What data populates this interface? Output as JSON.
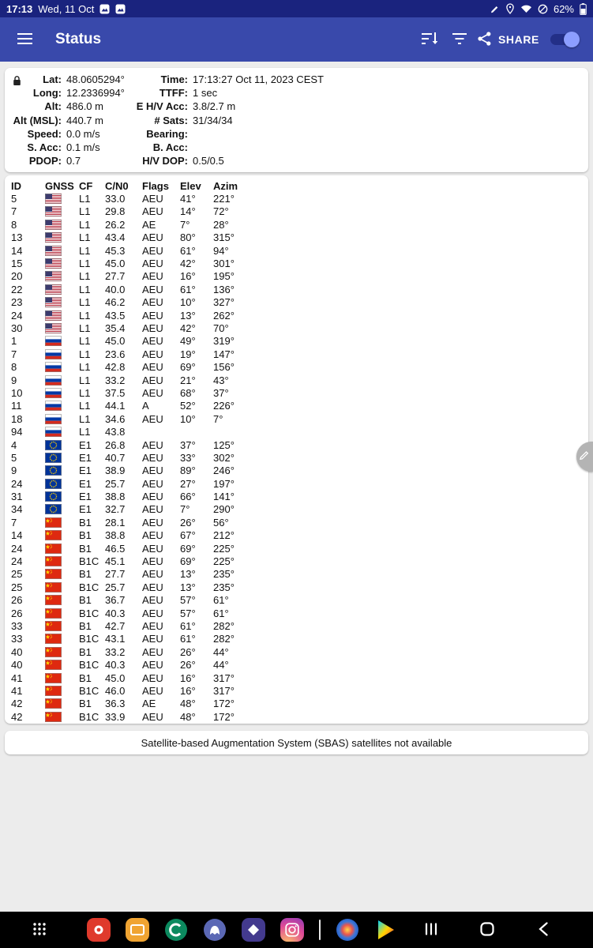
{
  "colors": {
    "status_bar": "#1A237E",
    "app_bar": "#3949AB",
    "background": "#ececec",
    "toggle_thumb": "#8C9EFF",
    "nav_bar": "#000000"
  },
  "status_bar": {
    "time": "17:13",
    "date": "Wed, 11 Oct",
    "battery": "62%",
    "left_icons": [
      "screenshot-icon",
      "screenshot-icon"
    ],
    "right_icons": [
      "edit-icon",
      "location-icon",
      "wifi-icon",
      "mute-icon",
      "battery-icon"
    ]
  },
  "app_bar": {
    "title": "Status",
    "share_label": "SHARE",
    "icons": [
      "menu-icon",
      "sort-icon",
      "filter-icon",
      "share-icon"
    ],
    "toggle_on": true
  },
  "info": {
    "rows_left": [
      {
        "label": "Lat:",
        "value": "48.0605294°"
      },
      {
        "label": "Long:",
        "value": "12.2336994°"
      },
      {
        "label": "Alt:",
        "value": "486.0 m"
      },
      {
        "label": "Alt (MSL):",
        "value": "440.7 m"
      },
      {
        "label": "Speed:",
        "value": "0.0 m/s"
      },
      {
        "label": "S. Acc:",
        "value": "0.1 m/s"
      },
      {
        "label": "PDOP:",
        "value": "0.7"
      }
    ],
    "rows_right": [
      {
        "label": "Time:",
        "value": "17:13:27 Oct 11, 2023 CEST"
      },
      {
        "label": "TTFF:",
        "value": "1 sec"
      },
      {
        "label": "E H/V Acc:",
        "value": "3.8/2.7 m"
      },
      {
        "label": "# Sats:",
        "value": "31/34/34"
      },
      {
        "label": "Bearing:",
        "value": ""
      },
      {
        "label": "B. Acc:",
        "value": ""
      },
      {
        "label": "H/V DOP:",
        "value": "0.5/0.5"
      }
    ]
  },
  "table": {
    "headers": [
      "ID",
      "GNSS",
      "CF",
      "C/N0",
      "Flags",
      "Elev",
      "Azim"
    ],
    "rows": [
      [
        "5",
        "us",
        "L1",
        "33.0",
        "AEU",
        "41°",
        "221°"
      ],
      [
        "7",
        "us",
        "L1",
        "29.8",
        "AEU",
        "14°",
        "72°"
      ],
      [
        "8",
        "us",
        "L1",
        "26.2",
        "AE",
        "7°",
        "28°"
      ],
      [
        "13",
        "us",
        "L1",
        "43.4",
        "AEU",
        "80°",
        "315°"
      ],
      [
        "14",
        "us",
        "L1",
        "45.3",
        "AEU",
        "61°",
        "94°"
      ],
      [
        "15",
        "us",
        "L1",
        "45.0",
        "AEU",
        "42°",
        "301°"
      ],
      [
        "20",
        "us",
        "L1",
        "27.7",
        "AEU",
        "16°",
        "195°"
      ],
      [
        "22",
        "us",
        "L1",
        "40.0",
        "AEU",
        "61°",
        "136°"
      ],
      [
        "23",
        "us",
        "L1",
        "46.2",
        "AEU",
        "10°",
        "327°"
      ],
      [
        "24",
        "us",
        "L1",
        "43.5",
        "AEU",
        "13°",
        "262°"
      ],
      [
        "30",
        "us",
        "L1",
        "35.4",
        "AEU",
        "42°",
        "70°"
      ],
      [
        "1",
        "ru",
        "L1",
        "45.0",
        "AEU",
        "49°",
        "319°"
      ],
      [
        "7",
        "ru",
        "L1",
        "23.6",
        "AEU",
        "19°",
        "147°"
      ],
      [
        "8",
        "ru",
        "L1",
        "42.8",
        "AEU",
        "69°",
        "156°"
      ],
      [
        "9",
        "ru",
        "L1",
        "33.2",
        "AEU",
        "21°",
        "43°"
      ],
      [
        "10",
        "ru",
        "L1",
        "37.5",
        "AEU",
        "68°",
        "37°"
      ],
      [
        "11",
        "ru",
        "L1",
        "44.1",
        "A",
        "52°",
        "226°"
      ],
      [
        "18",
        "ru",
        "L1",
        "34.6",
        "AEU",
        "10°",
        "7°"
      ],
      [
        "94",
        "ru",
        "L1",
        "43.8",
        "",
        "",
        ""
      ],
      [
        "4",
        "eu",
        "E1",
        "26.8",
        "AEU",
        "37°",
        "125°"
      ],
      [
        "5",
        "eu",
        "E1",
        "40.7",
        "AEU",
        "33°",
        "302°"
      ],
      [
        "9",
        "eu",
        "E1",
        "38.9",
        "AEU",
        "89°",
        "246°"
      ],
      [
        "24",
        "eu",
        "E1",
        "25.7",
        "AEU",
        "27°",
        "197°"
      ],
      [
        "31",
        "eu",
        "E1",
        "38.8",
        "AEU",
        "66°",
        "141°"
      ],
      [
        "34",
        "eu",
        "E1",
        "32.7",
        "AEU",
        "7°",
        "290°"
      ],
      [
        "7",
        "cn",
        "B1",
        "28.1",
        "AEU",
        "26°",
        "56°"
      ],
      [
        "14",
        "cn",
        "B1",
        "38.8",
        "AEU",
        "67°",
        "212°"
      ],
      [
        "24",
        "cn",
        "B1",
        "46.5",
        "AEU",
        "69°",
        "225°"
      ],
      [
        "24",
        "cn",
        "B1C",
        "45.1",
        "AEU",
        "69°",
        "225°"
      ],
      [
        "25",
        "cn",
        "B1",
        "27.7",
        "AEU",
        "13°",
        "235°"
      ],
      [
        "25",
        "cn",
        "B1C",
        "25.7",
        "AEU",
        "13°",
        "235°"
      ],
      [
        "26",
        "cn",
        "B1",
        "36.7",
        "AEU",
        "57°",
        "61°"
      ],
      [
        "26",
        "cn",
        "B1C",
        "40.3",
        "AEU",
        "57°",
        "61°"
      ],
      [
        "33",
        "cn",
        "B1",
        "42.7",
        "AEU",
        "61°",
        "282°"
      ],
      [
        "33",
        "cn",
        "B1C",
        "43.1",
        "AEU",
        "61°",
        "282°"
      ],
      [
        "40",
        "cn",
        "B1",
        "33.2",
        "AEU",
        "26°",
        "44°"
      ],
      [
        "40",
        "cn",
        "B1C",
        "40.3",
        "AEU",
        "26°",
        "44°"
      ],
      [
        "41",
        "cn",
        "B1",
        "45.0",
        "AEU",
        "16°",
        "317°"
      ],
      [
        "41",
        "cn",
        "B1C",
        "46.0",
        "AEU",
        "16°",
        "317°"
      ],
      [
        "42",
        "cn",
        "B1",
        "36.3",
        "AE",
        "48°",
        "172°"
      ],
      [
        "42",
        "cn",
        "B1C",
        "33.9",
        "AEU",
        "48°",
        "172°"
      ]
    ]
  },
  "sbas": {
    "message": "Satellite-based Augmentation System (SBAS) satellites not available"
  },
  "fab": {
    "icon": "pencil-icon"
  },
  "dock": {
    "apps": [
      {
        "icon": "red-app",
        "color": "#df3a2c"
      },
      {
        "icon": "amber-app",
        "color": "#f0a432"
      },
      {
        "icon": "green-app",
        "color": "#0c8a5f"
      },
      {
        "icon": "chat-app",
        "color": "#5b68b5"
      },
      {
        "icon": "purple-app",
        "color": "#433a8e"
      },
      {
        "icon": "camera-app",
        "color": "#d6356f"
      },
      {
        "icon": "divider"
      },
      {
        "icon": "browser-app",
        "color": "#2a62c9"
      },
      {
        "icon": "play-store"
      }
    ],
    "nav": [
      {
        "name": "recents-button",
        "icon": "recents-icon"
      },
      {
        "name": "home-button",
        "icon": "home-icon"
      },
      {
        "name": "back-button",
        "icon": "back-icon"
      }
    ]
  }
}
